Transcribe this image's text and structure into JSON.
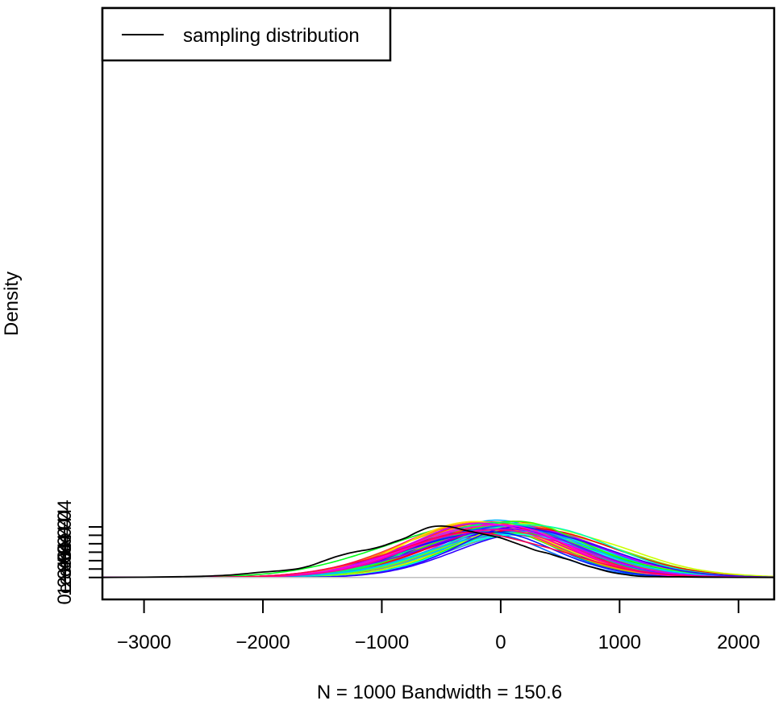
{
  "chart_data": {
    "type": "line",
    "title": "",
    "xlabel": "N = 1000   Bandwidth = 150.6",
    "ylabel": "Density",
    "xlim": [
      -3350,
      2300
    ],
    "ylim": [
      -0.00026,
      0.00675
    ],
    "x_ticks": [
      -3000,
      -2000,
      -1000,
      0,
      1000,
      2000
    ],
    "x_tick_labels": [
      "−3000",
      "−2000",
      "−1000",
      "0",
      "1000",
      "2000"
    ],
    "y_ticks": [
      0,
      0.0001,
      0.0002,
      0.0003,
      0.0004,
      0.0005,
      0.0006
    ],
    "y_tick_labels": [
      "0e+00",
      "1e−04",
      "2e−04",
      "3e−04",
      "4e−04",
      "5e−04",
      "6e−04"
    ],
    "grid": false,
    "zero_line": true,
    "legend": {
      "placement": "top-left",
      "entries": [
        {
          "label": "sampling distribution",
          "color": "#000000"
        }
      ]
    },
    "series": [
      {
        "name": "sampling distribution",
        "color": "#000000",
        "x": [
          -3350,
          -3000,
          -2700,
          -2500,
          -2300,
          -2150,
          -2000,
          -1850,
          -1700,
          -1600,
          -1500,
          -1400,
          -1300,
          -1200,
          -1100,
          -1000,
          -900,
          -800,
          -700,
          -600,
          -500,
          -400,
          -300,
          -200,
          -100,
          0,
          100,
          200,
          300,
          400,
          500,
          600,
          700,
          800,
          900,
          1000,
          1100,
          1200,
          1350,
          1500,
          1700,
          2000,
          2300
        ],
        "y": [
          1e-06,
          4e-06,
          9e-06,
          1.5e-05,
          2.7e-05,
          4.5e-05,
          6.5e-05,
          8e-05,
          0.000105,
          0.00014,
          0.00019,
          0.00024,
          0.00028,
          0.00031,
          0.000335,
          0.00037,
          0.00042,
          0.00047,
          0.00054,
          0.000595,
          0.00061,
          0.000595,
          0.00056,
          0.00053,
          0.0005,
          0.00047,
          0.00042,
          0.00037,
          0.00032,
          0.000285,
          0.00024,
          0.0002,
          0.00015,
          0.00011,
          7e-05,
          4.5e-05,
          2.5e-05,
          1.3e-05,
          1e-05,
          8e-06,
          5e-06,
          2e-06,
          1e-06
        ]
      }
    ],
    "bootstrap_curves": {
      "description": "rainbow-colored density curves of resampled data",
      "count": 80,
      "mean_range": [
        -230,
        240
      ],
      "sd_range": [
        610,
        700
      ],
      "peak_range": [
        0.00051,
        0.00067
      ],
      "colors": [
        "#FF0000",
        "#FF4D00",
        "#FF9900",
        "#FFE500",
        "#CCFF00",
        "#80FF00",
        "#33FF00",
        "#00FF19",
        "#00FF66",
        "#00FFB2",
        "#00FFFF",
        "#00B3FF",
        "#0066FF",
        "#001AFF",
        "#3300FF",
        "#7F00FF",
        "#CC00FF",
        "#FF00E6",
        "#FF0099",
        "#FF004D"
      ]
    }
  }
}
